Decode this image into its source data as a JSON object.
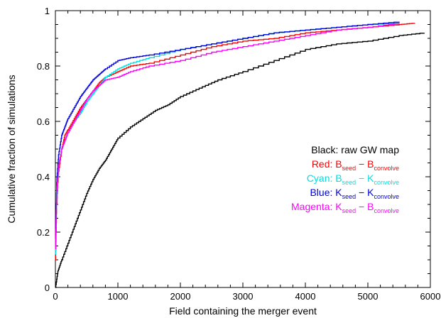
{
  "chart_data": {
    "type": "line",
    "xlabel": "Field containing the merger event",
    "ylabel": "Cumulative fraction of simulations",
    "xlim": [
      0,
      6000
    ],
    "ylim": [
      0,
      1
    ],
    "xticks": [
      0,
      1000,
      2000,
      3000,
      4000,
      5000,
      6000
    ],
    "yticks": [
      0,
      0.2,
      0.4,
      0.6,
      0.8,
      1
    ],
    "xtick_labels": [
      "0",
      "1000",
      "2000",
      "3000",
      "4000",
      "5000",
      "6000"
    ],
    "ytick_labels": [
      "0",
      "0.2",
      "0.4",
      "0.6",
      "0.8",
      "1"
    ],
    "grid": false,
    "legend_placement": "right-middle",
    "legend": [
      {
        "color": "#000000",
        "text": "Black: raw GW map"
      },
      {
        "color": "#ff0000",
        "prefix": "Red: ",
        "a": "B",
        "a_sub": "seed",
        "sep": " − ",
        "b": "B",
        "b_sub": "convolve"
      },
      {
        "color": "#00e0e0",
        "prefix": "Cyan: ",
        "a": "B",
        "a_sub": "seed",
        "sep": " − ",
        "b": "K",
        "b_sub": "convolve"
      },
      {
        "color": "#0000dd",
        "prefix": "Blue: ",
        "a": "K",
        "a_sub": "seed",
        "sep": " − ",
        "b": "K",
        "b_sub": "convolve"
      },
      {
        "color": "#ff00ff",
        "prefix": "Magenta: ",
        "a": "K",
        "a_sub": "seed",
        "sep": " − ",
        "b": "B",
        "b_sub": "convolve"
      }
    ],
    "series": [
      {
        "color": "#000000",
        "x": [
          0,
          40,
          100,
          200,
          300,
          400,
          500,
          600,
          700,
          800,
          900,
          1000,
          1200,
          1400,
          1600,
          1800,
          2000,
          2300,
          2600,
          3000,
          3500,
          4000,
          4500,
          5000,
          5500,
          5900
        ],
        "y": [
          0,
          0.06,
          0.1,
          0.16,
          0.22,
          0.28,
          0.34,
          0.39,
          0.43,
          0.46,
          0.5,
          0.54,
          0.58,
          0.61,
          0.64,
          0.66,
          0.69,
          0.72,
          0.75,
          0.78,
          0.82,
          0.86,
          0.88,
          0.89,
          0.91,
          0.92
        ]
      },
      {
        "color": "#ff0000",
        "x": [
          0,
          20,
          50,
          100,
          150,
          200,
          300,
          400,
          500,
          600,
          700,
          800,
          1000,
          1200,
          1500,
          2000,
          2500,
          3000,
          3500,
          4000,
          4500,
          5000,
          5500,
          5750
        ],
        "y": [
          0.1,
          0.3,
          0.42,
          0.5,
          0.55,
          0.57,
          0.61,
          0.65,
          0.68,
          0.71,
          0.74,
          0.76,
          0.78,
          0.8,
          0.81,
          0.84,
          0.87,
          0.89,
          0.9,
          0.92,
          0.93,
          0.94,
          0.95,
          0.955
        ]
      },
      {
        "color": "#00e0e0",
        "x": [
          0,
          20,
          50,
          100,
          150,
          200,
          300,
          400,
          500,
          600,
          700,
          800,
          1000,
          1200,
          1500,
          2000,
          2500,
          3000,
          3500,
          4000,
          4500,
          5000,
          5500
        ],
        "y": [
          0.12,
          0.32,
          0.44,
          0.5,
          0.53,
          0.56,
          0.6,
          0.63,
          0.67,
          0.7,
          0.73,
          0.76,
          0.79,
          0.81,
          0.83,
          0.86,
          0.88,
          0.9,
          0.92,
          0.93,
          0.94,
          0.95,
          0.955
        ]
      },
      {
        "color": "#0000dd",
        "x": [
          0,
          20,
          50,
          100,
          150,
          200,
          300,
          400,
          500,
          600,
          700,
          800,
          1000,
          1200,
          1500,
          2000,
          2500,
          3000,
          3500,
          4000,
          4500,
          5000,
          5500
        ],
        "y": [
          0.15,
          0.38,
          0.48,
          0.55,
          0.58,
          0.61,
          0.65,
          0.69,
          0.72,
          0.75,
          0.77,
          0.79,
          0.82,
          0.83,
          0.84,
          0.86,
          0.88,
          0.9,
          0.92,
          0.93,
          0.94,
          0.95,
          0.96
        ]
      },
      {
        "color": "#ff00ff",
        "x": [
          0,
          20,
          50,
          100,
          150,
          200,
          300,
          400,
          500,
          600,
          700,
          800,
          1000,
          1200,
          1500,
          2000,
          2500,
          3000,
          3500,
          4000,
          4500,
          5000,
          5500
        ],
        "y": [
          0.14,
          0.35,
          0.44,
          0.5,
          0.53,
          0.56,
          0.6,
          0.64,
          0.68,
          0.71,
          0.73,
          0.75,
          0.76,
          0.78,
          0.8,
          0.82,
          0.85,
          0.87,
          0.89,
          0.91,
          0.93,
          0.94,
          0.955
        ]
      }
    ]
  }
}
